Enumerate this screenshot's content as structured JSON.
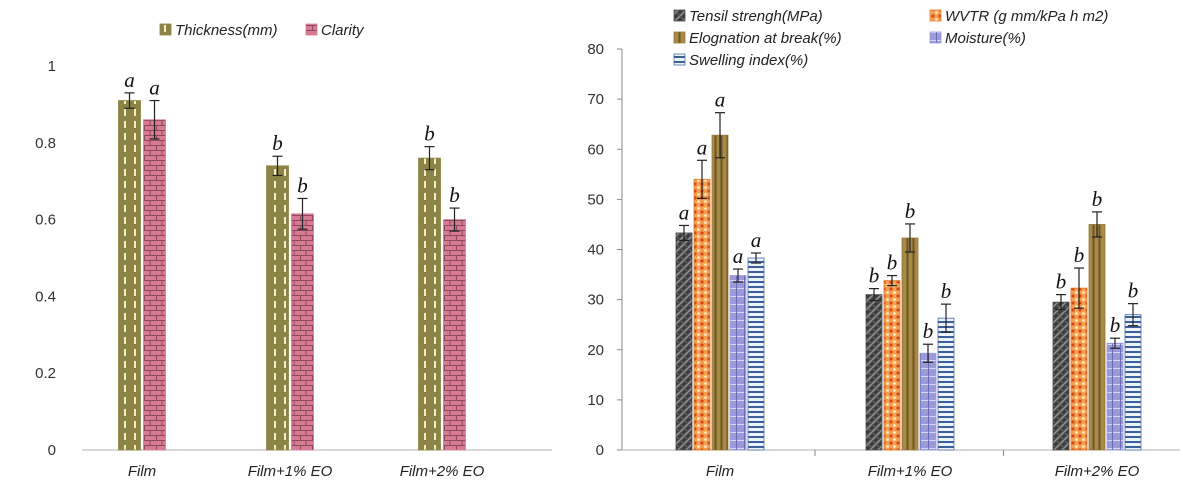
{
  "charts": [
    {
      "type": "bar",
      "categories": [
        "Film",
        "Film+1% EO",
        "Film+2% EO"
      ],
      "ylim": [
        0,
        1
      ],
      "yticks": [
        0,
        0.2,
        0.4,
        0.6,
        0.8,
        1
      ],
      "ytick_labels": [
        "0",
        "0.2",
        "0.4",
        "0.6",
        "0.8",
        "1"
      ],
      "legend_position": "top",
      "grid": false,
      "series": [
        {
          "name": "Thickness(mm)",
          "pattern": "dashes",
          "color": "#8c8445",
          "values": [
            0.91,
            0.74,
            0.76
          ],
          "errors": [
            0.02,
            0.025,
            0.03
          ],
          "labels": [
            "a",
            "b",
            "b"
          ]
        },
        {
          "name": "Clarity",
          "pattern": "brick",
          "color": "#d87a94",
          "values": [
            0.86,
            0.615,
            0.6
          ],
          "errors": [
            0.05,
            0.04,
            0.03
          ],
          "labels": [
            "a",
            "b",
            "b"
          ]
        }
      ]
    },
    {
      "type": "bar",
      "categories": [
        "Film",
        "Film+1% EO",
        "Film+2% EO"
      ],
      "ylim": [
        0,
        80
      ],
      "yticks": [
        0,
        10,
        20,
        30,
        40,
        50,
        60,
        70,
        80
      ],
      "ytick_labels": [
        "0",
        "10",
        "20",
        "30",
        "40",
        "50",
        "60",
        "70",
        "80"
      ],
      "legend_position": "top",
      "grid": false,
      "series": [
        {
          "name": "Tensil strengh(MPa)",
          "pattern": "checker",
          "color": "#4a4a4a",
          "values": [
            43.3,
            31,
            29.5
          ],
          "errors": [
            1.5,
            1.2,
            1.5
          ],
          "labels": [
            "a",
            "b",
            "b"
          ]
        },
        {
          "name": "WVTR (g mm/kPa h m2)",
          "pattern": "dots",
          "color": "#e8782a",
          "values": [
            54,
            33.8,
            32.3
          ],
          "errors": [
            3.8,
            1,
            4
          ],
          "labels": [
            "a",
            "b",
            "b"
          ]
        },
        {
          "name": "Elognation at break(%)",
          "pattern": "vstripe",
          "color": "#9b7b3a",
          "values": [
            62.8,
            42.3,
            45
          ],
          "errors": [
            4.5,
            2.8,
            2.5
          ],
          "labels": [
            "a",
            "b",
            "b"
          ]
        },
        {
          "name": "Moisture(%)",
          "pattern": "grid",
          "color": "#9a9ad8",
          "values": [
            34.8,
            19.3,
            21.3
          ],
          "errors": [
            1.3,
            1.8,
            1
          ],
          "labels": [
            "a",
            "b",
            "b"
          ]
        },
        {
          "name": "Swelling index(%)",
          "pattern": "hlines",
          "color": "#4a6fa8",
          "values": [
            38.3,
            26.3,
            27
          ],
          "errors": [
            1,
            2.8,
            2.2
          ],
          "labels": [
            "a",
            "b",
            "b"
          ]
        }
      ]
    }
  ]
}
